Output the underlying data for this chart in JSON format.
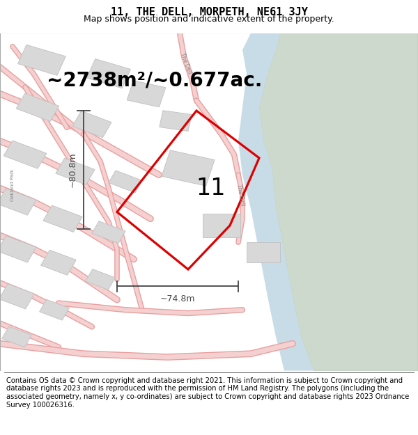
{
  "title_line1": "11, THE DELL, MORPETH, NE61 3JY",
  "title_line2": "Map shows position and indicative extent of the property.",
  "area_text": "~2738m²/~0.677ac.",
  "label_number": "11",
  "width_label": "~74.8m",
  "height_label": "~80.8m",
  "footer_text": "Contains OS data © Crown copyright and database right 2021. This information is subject to Crown copyright and database rights 2023 and is reproduced with the permission of HM Land Registry. The polygons (including the associated geometry, namely x, y co-ordinates) are subject to Crown copyright and database rights 2023 Ordnance Survey 100026316.",
  "map_bg": "#f9f9f9",
  "road_fill": "#f5d0d0",
  "road_edge": "#e8a0a0",
  "building_fill": "#d8d8d8",
  "building_edge": "#c0c0c0",
  "green_fill": "#ccd9cc",
  "green_edge": "#b8ceb8",
  "water_fill": "#c8dce8",
  "water_edge": "#a8c4d8",
  "property_color": "#dd0000",
  "dim_color": "#444444",
  "title_fontsize": 11,
  "subtitle_fontsize": 9,
  "area_fontsize": 20,
  "label_fontsize": 24,
  "dim_label_fontsize": 9,
  "footer_fontsize": 7.2,
  "label_color": "#888888",
  "road_label_fontsize": 5.5
}
